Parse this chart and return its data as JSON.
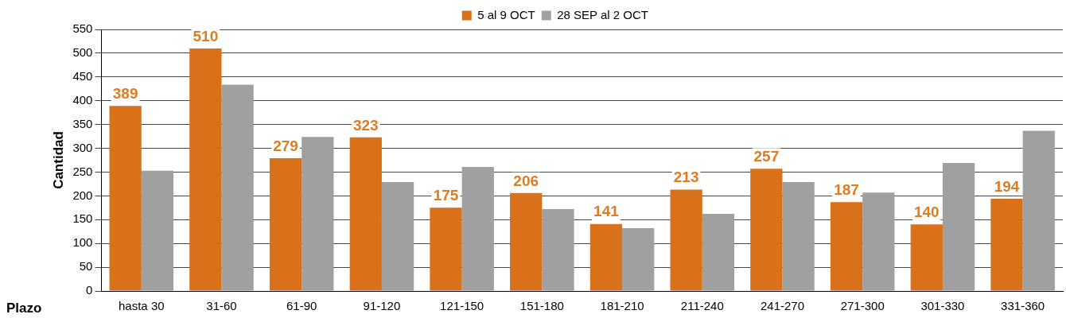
{
  "chart_data": {
    "type": "bar",
    "xlabel": "Plazo",
    "ylabel": "Cantidad",
    "categories": [
      "hasta 30",
      "31-60",
      "61-90",
      "91-120",
      "121-150",
      "151-180",
      "181-210",
      "211-240",
      "241-270",
      "271-300",
      "301-330",
      "331-360"
    ],
    "series": [
      {
        "name": "5 al 9 OCT",
        "color": "#d9701a",
        "values": [
          389,
          510,
          279,
          323,
          175,
          206,
          141,
          213,
          257,
          187,
          140,
          194
        ],
        "value_labels": [
          "389",
          "510",
          "279",
          "323",
          "175",
          "206",
          "141",
          "213",
          "257",
          "187",
          "140",
          "194"
        ]
      },
      {
        "name": "28 SEP al 2 OCT",
        "color": "#a0a0a0",
        "values": [
          253,
          434,
          324,
          229,
          261,
          172,
          132,
          162,
          229,
          207,
          269,
          337
        ]
      }
    ],
    "ylim": [
      0,
      550
    ],
    "yticks": [
      0,
      50,
      100,
      150,
      200,
      250,
      300,
      350,
      400,
      450,
      500,
      550
    ],
    "grid": "y",
    "legend": "top"
  }
}
